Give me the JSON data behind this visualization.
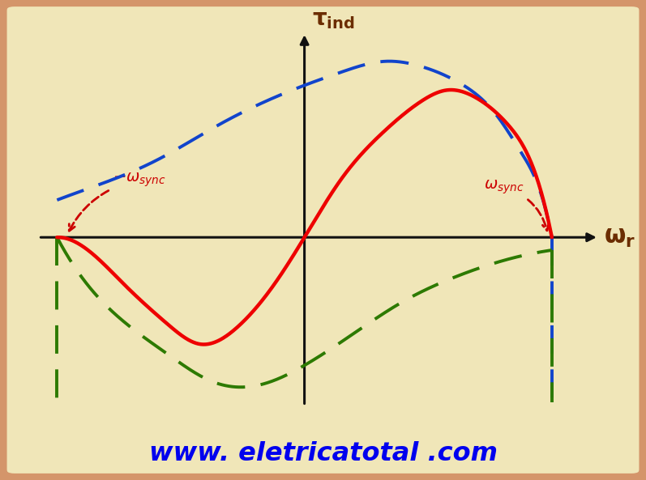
{
  "background_color": "#f0e6b8",
  "border_color": "#d4956a",
  "axis_color": "#111111",
  "ylabel_color": "#6b2d00",
  "xlabel_color": "#6b2d00",
  "website_text": "www. eletricatotal .com",
  "website_color": "#0000ee",
  "omega_sync_color": "#cc0000",
  "red_curve_color": "#ee0000",
  "blue_curve_color": "#1144cc",
  "green_curve_color": "#2d7a00",
  "x_range": [
    -2.2,
    2.5
  ],
  "y_range": [
    -1.6,
    2.0
  ],
  "omega_sync": 2.0,
  "axis_lw": 2.2,
  "curve_lw_red": 3.2,
  "curve_lw_blue": 2.8,
  "curve_lw_green": 2.8
}
